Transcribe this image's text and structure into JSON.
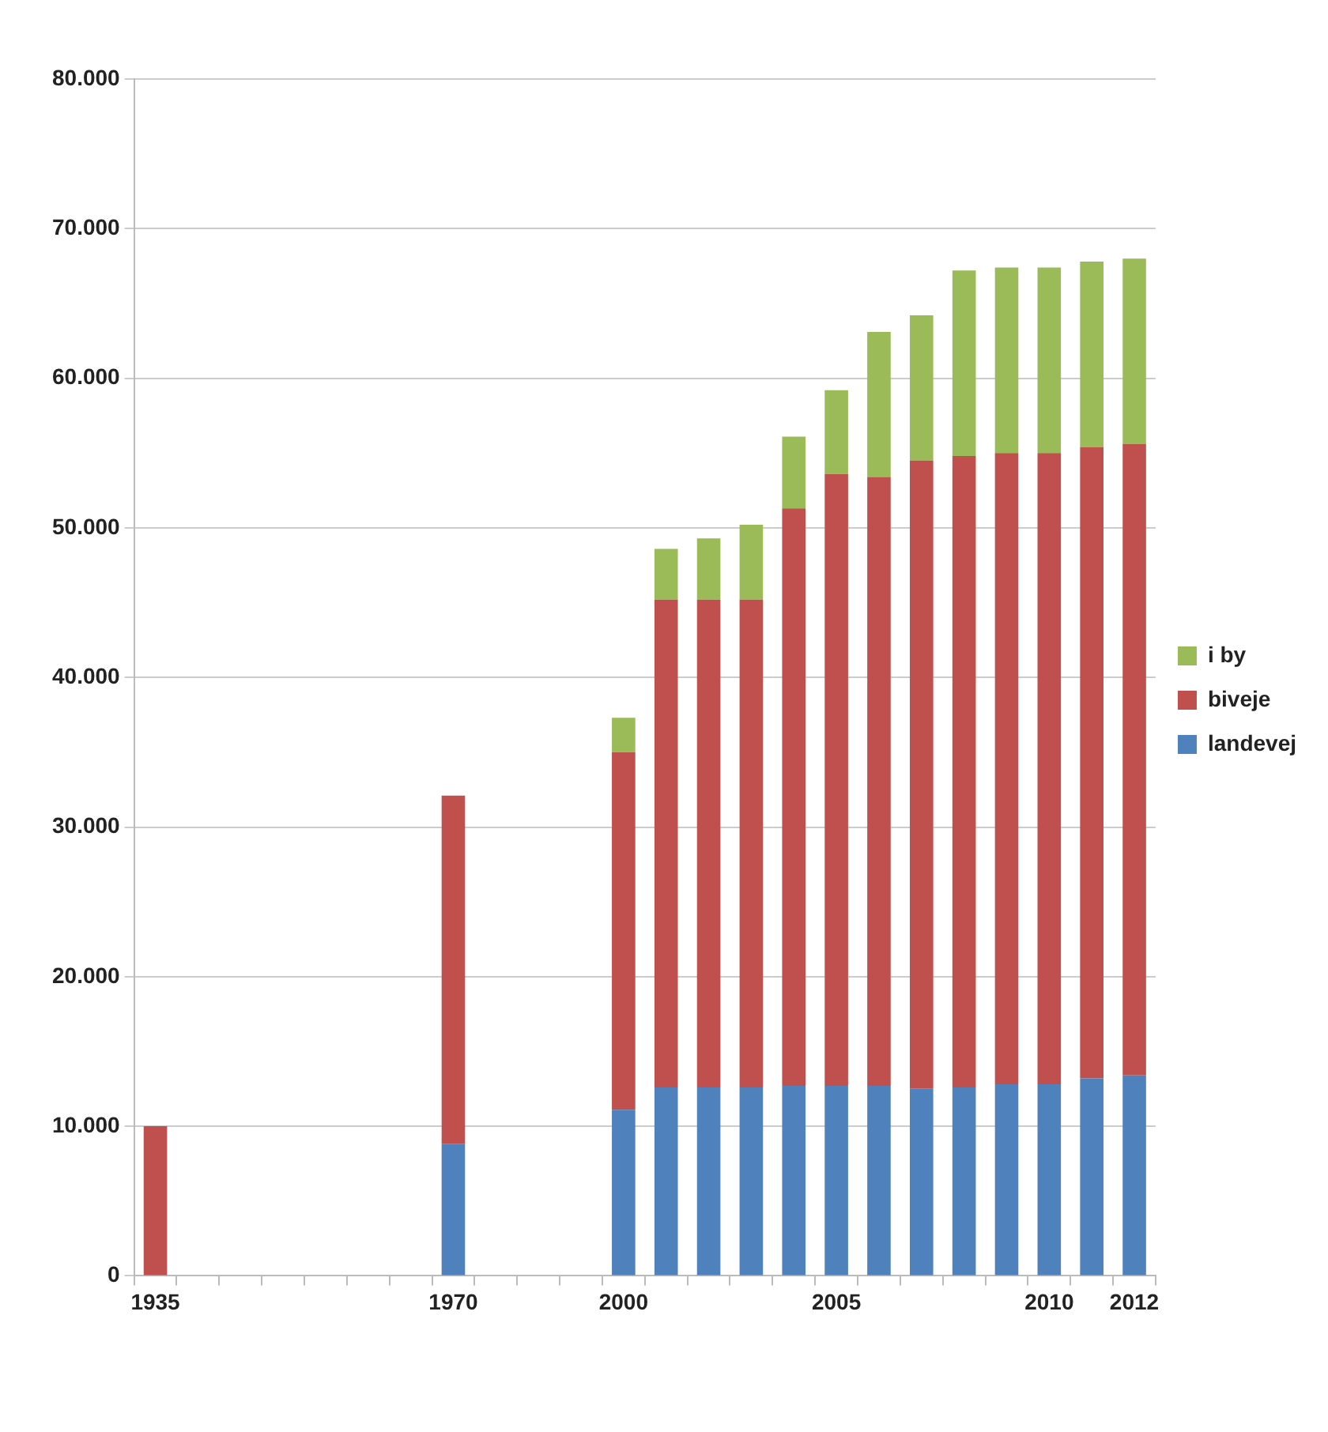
{
  "chart_data": {
    "type": "bar",
    "stacked": true,
    "categories": [
      "1935",
      null,
      null,
      null,
      null,
      null,
      null,
      "1970",
      null,
      null,
      null,
      "2000",
      null,
      null,
      null,
      null,
      "2005",
      null,
      null,
      null,
      null,
      "2010",
      null,
      "2012"
    ],
    "series": [
      {
        "name": "landevej",
        "color": "#4f81bd",
        "values": [
          null,
          null,
          null,
          null,
          null,
          null,
          null,
          8800,
          null,
          null,
          null,
          11100,
          12600,
          12600,
          12600,
          12700,
          12700,
          12700,
          12500,
          12600,
          12800,
          12800,
          13200,
          13400
        ]
      },
      {
        "name": "biveje",
        "color": "#c0504d",
        "values": [
          10000,
          null,
          null,
          null,
          null,
          null,
          null,
          23300,
          null,
          null,
          null,
          23900,
          32600,
          32600,
          32600,
          38600,
          40900,
          40700,
          42000,
          42200,
          42200,
          42200,
          42200,
          42200
        ]
      },
      {
        "name": "i by",
        "color": "#9bbb59",
        "values": [
          null,
          null,
          null,
          null,
          null,
          null,
          null,
          null,
          null,
          null,
          null,
          2300,
          3400,
          4100,
          5000,
          4800,
          5600,
          9700,
          9700,
          12400,
          12400,
          12400,
          12400,
          12400
        ]
      }
    ],
    "ylim": [
      0,
      80000
    ],
    "yticks": [
      0,
      {
        "value": 10000,
        "label": "10.000"
      },
      {
        "value": 20000,
        "label": "20.000"
      },
      {
        "value": 30000,
        "label": "30.000"
      },
      {
        "value": 40000,
        "label": "40.000"
      },
      {
        "value": 50000,
        "label": "50.000"
      },
      {
        "value": 60000,
        "label": "60.000"
      },
      {
        "value": 70000,
        "label": "70.000"
      },
      {
        "value": 80000,
        "label": "80.000"
      }
    ],
    "grid": "y",
    "legend": "right"
  }
}
